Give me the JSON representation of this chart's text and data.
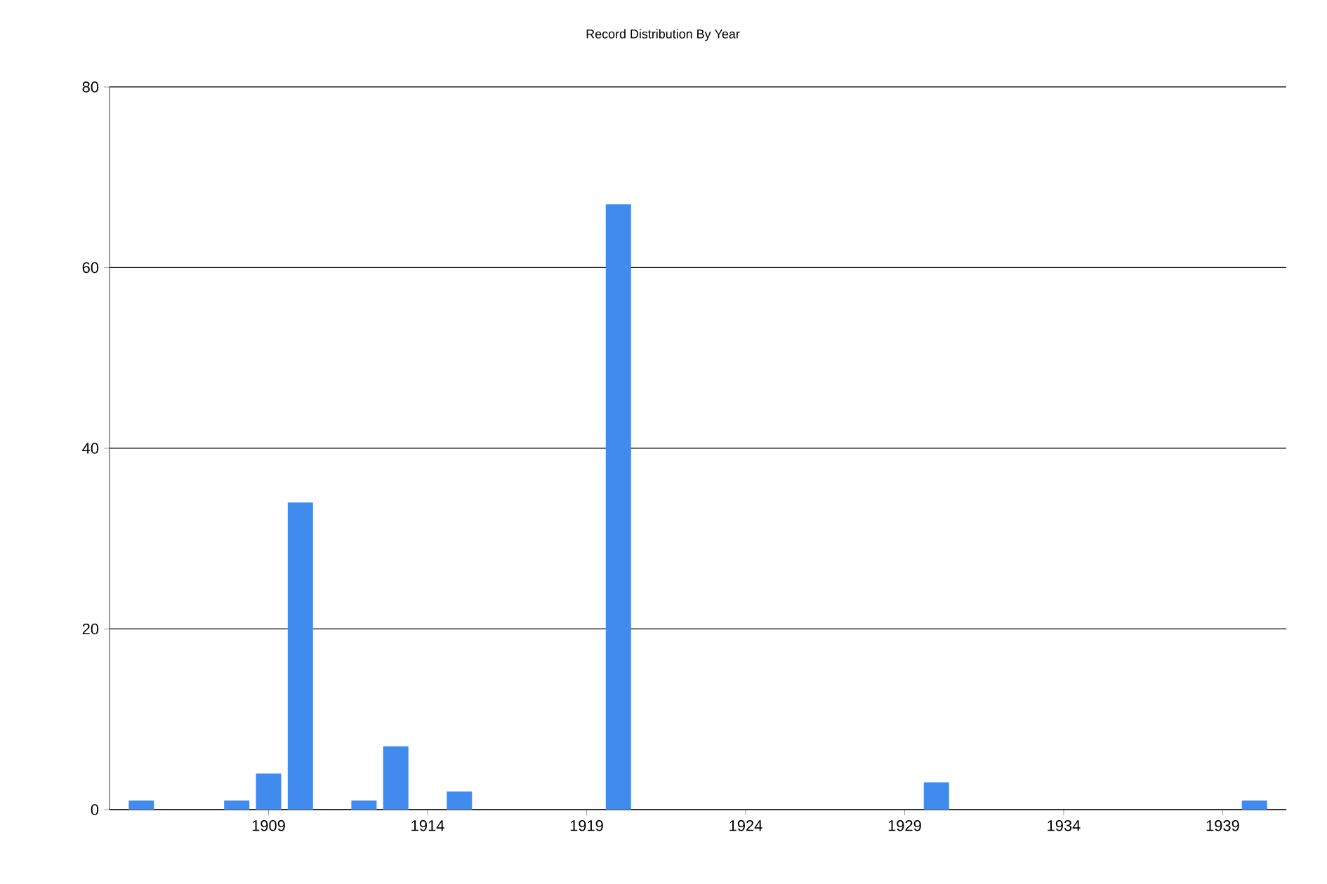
{
  "chart_data": {
    "type": "bar",
    "title": "Record Distribution By Year",
    "x": [
      1905,
      1908,
      1909,
      1910,
      1912,
      1913,
      1915,
      1920,
      1930,
      1940
    ],
    "values": [
      1,
      1,
      4,
      34,
      1,
      7,
      2,
      67,
      3,
      1
    ],
    "color": "#428bee",
    "xlim": [
      1904,
      1941
    ],
    "xticks": [
      1909,
      1914,
      1919,
      1924,
      1929,
      1934,
      1939
    ],
    "ylim": [
      0,
      80
    ],
    "yticks": [
      0,
      20,
      40,
      60,
      80
    ],
    "grid": "y"
  }
}
